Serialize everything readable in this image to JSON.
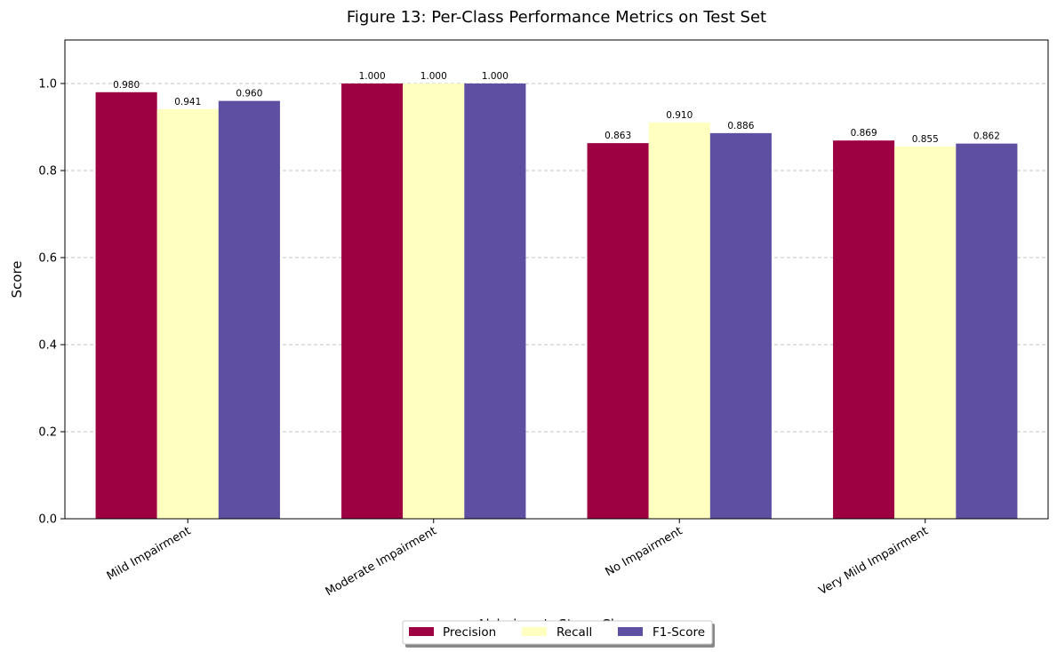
{
  "chart_data": {
    "type": "bar",
    "title": "Figure 13: Per-Class Performance Metrics on Test Set",
    "xlabel": "Alzheimer's Stage Class",
    "ylabel": "Score",
    "categories": [
      "Mild Impairment",
      "Moderate Impairment",
      "No Impairment",
      "Very Mild Impairment"
    ],
    "series": [
      {
        "name": "Precision",
        "color": "#9e0142",
        "values": [
          0.98,
          1.0,
          0.863,
          0.869
        ]
      },
      {
        "name": "Recall",
        "color": "#ffffbf",
        "values": [
          0.941,
          1.0,
          0.91,
          0.855
        ]
      },
      {
        "name": "F1-Score",
        "color": "#5e4fa2",
        "values": [
          0.96,
          1.0,
          0.886,
          0.862
        ]
      }
    ],
    "ylim": [
      0,
      1.1
    ],
    "yticks": [
      0.0,
      0.2,
      0.4,
      0.6,
      0.8,
      1.0
    ],
    "ytick_labels": [
      "0.0",
      "0.2",
      "0.4",
      "0.6",
      "0.8",
      "1.0"
    ],
    "grid": "y-dashed",
    "legend_position": "bottom-center",
    "value_labels": true,
    "value_format": "3-decimals"
  }
}
